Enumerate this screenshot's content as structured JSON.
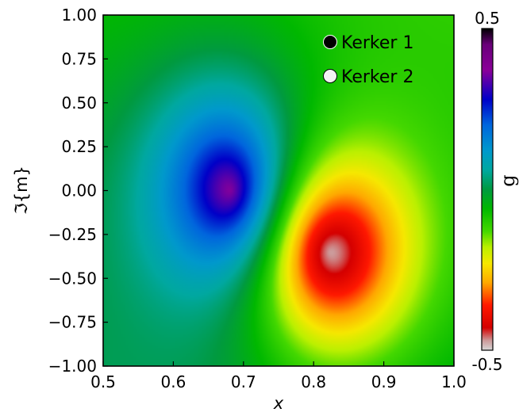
{
  "chart_data": {
    "type": "heatmap",
    "title": "",
    "xlabel": "x",
    "ylabel": "ℑ{m}",
    "xlim": [
      0.5,
      1.0
    ],
    "ylim": [
      -1.0,
      1.0
    ],
    "x_ticks": [
      "0.5",
      "0.6",
      "0.7",
      "0.8",
      "0.9",
      "1.0"
    ],
    "y_ticks": [
      "1.00",
      "0.75",
      "0.50",
      "0.25",
      "0.00",
      "−0.25",
      "−0.50",
      "−0.75",
      "−1.00"
    ],
    "x_tick_values": [
      0.5,
      0.6,
      0.7,
      0.8,
      0.9,
      1.0
    ],
    "y_tick_values": [
      1.0,
      0.75,
      0.5,
      0.25,
      0.0,
      -0.25,
      -0.5,
      -0.75,
      -1.0
    ],
    "colorbar": {
      "label": "g",
      "min_label": "-0.5",
      "max_label": "0.5",
      "range": [
        -0.5,
        0.5
      ],
      "colormap": "nipy_spectral_reversed"
    },
    "features": [
      {
        "kind": "maximum",
        "x": 0.682,
        "y": 0.0,
        "value": 0.5
      },
      {
        "kind": "minimum",
        "x": 0.822,
        "y": -0.35,
        "value": -0.5
      }
    ],
    "markers": [
      {
        "label": "Kerker 1",
        "color": "#000000"
      },
      {
        "label": "Kerker 2",
        "color": "#f2f2f2"
      }
    ],
    "legend_placement": "top-right",
    "grid": false
  }
}
